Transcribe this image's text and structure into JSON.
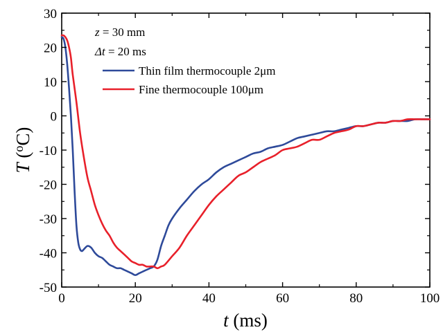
{
  "chart_data": {
    "type": "line",
    "xlabel": {
      "var": "t",
      "unit": " (ms)"
    },
    "ylabel": {
      "var": "T",
      "unit_open": " (",
      "unit_sup": "o",
      "unit_rest": "C)"
    },
    "xlim": [
      0,
      100
    ],
    "ylim": [
      -50,
      30
    ],
    "xticks": [
      0,
      20,
      40,
      60,
      80,
      100
    ],
    "yticks": [
      -50,
      -40,
      -30,
      -20,
      -10,
      0,
      10,
      20,
      30
    ],
    "grid": false,
    "annotations": [
      {
        "var": "z",
        "rest": " = 30 mm"
      },
      {
        "var": "Δt",
        "rest": " = 20 ms"
      }
    ],
    "legend_position": "top-left",
    "series": [
      {
        "name": "Thin film thermocouple 2μm",
        "color": "#2e4a9a",
        "x": [
          0,
          0.5,
          1,
          1.5,
          2,
          2.5,
          3,
          3.5,
          4,
          4.5,
          5,
          5.5,
          6,
          7,
          8,
          9,
          10,
          11,
          12,
          13,
          14,
          15,
          16,
          17,
          18,
          19,
          20,
          21,
          22,
          23,
          24,
          25,
          26,
          27,
          28,
          29,
          30,
          32,
          34,
          36,
          38,
          40,
          42,
          44,
          46,
          48,
          50,
          52,
          54,
          56,
          58,
          60,
          62,
          64,
          66,
          68,
          70,
          72,
          74,
          76,
          78,
          80,
          82,
          84,
          86,
          88,
          90,
          92,
          94,
          96,
          98,
          100
        ],
        "y": [
          23,
          22.5,
          20,
          15,
          8,
          0,
          -10,
          -22,
          -32,
          -37,
          -39,
          -39.5,
          -39,
          -38,
          -38.5,
          -40,
          -41,
          -41.5,
          -42.5,
          -43.5,
          -44,
          -44.5,
          -44.5,
          -45,
          -45.5,
          -46,
          -46.5,
          -46,
          -45.5,
          -45,
          -44.5,
          -44,
          -42,
          -38,
          -35,
          -32,
          -30,
          -27,
          -24.5,
          -22,
          -20,
          -18.5,
          -16.5,
          -15,
          -14,
          -13,
          -12,
          -11,
          -10.5,
          -9.5,
          -9,
          -8.5,
          -7.5,
          -6.5,
          -6,
          -5.5,
          -5,
          -4.5,
          -4.5,
          -4,
          -3.5,
          -3,
          -3,
          -2.5,
          -2,
          -2,
          -1.5,
          -1.5,
          -1.5,
          -1,
          -1,
          -1
        ]
      },
      {
        "name": "Fine thermocouple 100μm",
        "color": "#e8202a",
        "x": [
          0,
          0.5,
          1,
          1.5,
          2,
          2.5,
          3,
          4,
          5,
          6,
          7,
          8,
          9,
          10,
          11,
          12,
          13,
          14,
          15,
          16,
          17,
          18,
          19,
          20,
          21,
          22,
          23,
          24,
          25,
          26,
          27,
          28,
          30,
          32,
          34,
          36,
          38,
          40,
          42,
          44,
          46,
          48,
          50,
          52,
          54,
          56,
          58,
          60,
          62,
          64,
          66,
          68,
          70,
          72,
          74,
          76,
          78,
          80,
          82,
          84,
          86,
          88,
          90,
          92,
          94,
          96,
          98,
          100
        ],
        "y": [
          23.5,
          23.5,
          23,
          22,
          20,
          17,
          12,
          4,
          -5,
          -12,
          -18,
          -22,
          -26,
          -29,
          -31.5,
          -33.5,
          -35,
          -37,
          -38.5,
          -39.5,
          -40.5,
          -41.5,
          -42.5,
          -43,
          -43.5,
          -43.5,
          -44,
          -44,
          -44,
          -44.5,
          -44,
          -43.5,
          -41,
          -38.5,
          -35,
          -32,
          -29,
          -26,
          -23.5,
          -21.5,
          -19.5,
          -17.5,
          -16.5,
          -15,
          -13.5,
          -12.5,
          -11.5,
          -10,
          -9.5,
          -9,
          -8,
          -7,
          -7,
          -6,
          -5,
          -4.5,
          -4,
          -3,
          -3,
          -2.5,
          -2,
          -2,
          -1.5,
          -1.5,
          -1,
          -1,
          -1,
          -1
        ]
      }
    ]
  }
}
